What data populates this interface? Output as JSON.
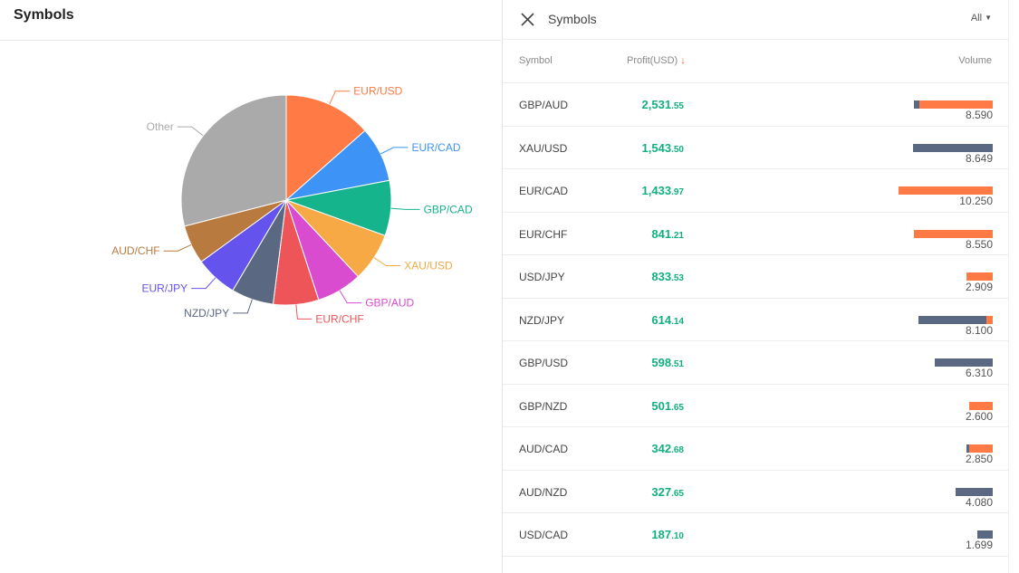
{
  "left": {
    "title": "Symbols"
  },
  "right": {
    "title": "Symbols",
    "filter_label": "All"
  },
  "colors": {
    "short": "#5a6882",
    "long": "#ff7a45",
    "profit": "#12b07f"
  },
  "columns": {
    "symbol": "Symbol",
    "profit": "Profit(USD)",
    "volume": "Volume"
  },
  "rows": [
    {
      "symbol": "GBP/AUD",
      "profit_int": "2,531",
      "profit_dec": ".55",
      "volume": "8.590",
      "volume_value": 8.59,
      "short_fraction": 0.07
    },
    {
      "symbol": "XAU/USD",
      "profit_int": "1,543",
      "profit_dec": ".50",
      "volume": "8.649",
      "volume_value": 8.649,
      "short_fraction": 1.0
    },
    {
      "symbol": "EUR/CAD",
      "profit_int": "1,433",
      "profit_dec": ".97",
      "volume": "10.250",
      "volume_value": 10.25,
      "short_fraction": 0.0
    },
    {
      "symbol": "EUR/CHF",
      "profit_int": "841",
      "profit_dec": ".21",
      "volume": "8.550",
      "volume_value": 8.55,
      "short_fraction": 0.0
    },
    {
      "symbol": "USD/JPY",
      "profit_int": "833",
      "profit_dec": ".53",
      "volume": "2.909",
      "volume_value": 2.909,
      "short_fraction": 0.0
    },
    {
      "symbol": "NZD/JPY",
      "profit_int": "614",
      "profit_dec": ".14",
      "volume": "8.100",
      "volume_value": 8.1,
      "short_fraction": 0.92
    },
    {
      "symbol": "GBP/USD",
      "profit_int": "598",
      "profit_dec": ".51",
      "volume": "6.310",
      "volume_value": 6.31,
      "short_fraction": 1.0
    },
    {
      "symbol": "GBP/NZD",
      "profit_int": "501",
      "profit_dec": ".65",
      "volume": "2.600",
      "volume_value": 2.6,
      "short_fraction": 0.0
    },
    {
      "symbol": "AUD/CAD",
      "profit_int": "342",
      "profit_dec": ".68",
      "volume": "2.850",
      "volume_value": 2.85,
      "short_fraction": 0.1
    },
    {
      "symbol": "AUD/NZD",
      "profit_int": "327",
      "profit_dec": ".65",
      "volume": "4.080",
      "volume_value": 4.08,
      "short_fraction": 1.0
    },
    {
      "symbol": "USD/CAD",
      "profit_int": "187",
      "profit_dec": ".10",
      "volume": "1.699",
      "volume_value": 1.699,
      "short_fraction": 1.0
    }
  ],
  "chart_data": {
    "type": "pie",
    "slices": [
      {
        "label": "EUR/USD",
        "value": 13.5,
        "color": "#ff7a45"
      },
      {
        "label": "EUR/CAD",
        "value": 8.5,
        "color": "#3d94f6"
      },
      {
        "label": "GBP/CAD",
        "value": 8.5,
        "color": "#16b48c"
      },
      {
        "label": "XAU/USD",
        "value": 7.5,
        "color": "#f6a945"
      },
      {
        "label": "GBP/AUD",
        "value": 7.0,
        "color": "#d94cd0"
      },
      {
        "label": "EUR/CHF",
        "value": 7.0,
        "color": "#ee5558"
      },
      {
        "label": "NZD/JPY",
        "value": 6.5,
        "color": "#5a6882"
      },
      {
        "label": "EUR/JPY",
        "value": 6.5,
        "color": "#6553ee"
      },
      {
        "label": "AUD/CHF",
        "value": 6.0,
        "color": "#b97a3f"
      },
      {
        "label": "Other",
        "value": 29.0,
        "color": "#aaaaaa"
      }
    ]
  }
}
